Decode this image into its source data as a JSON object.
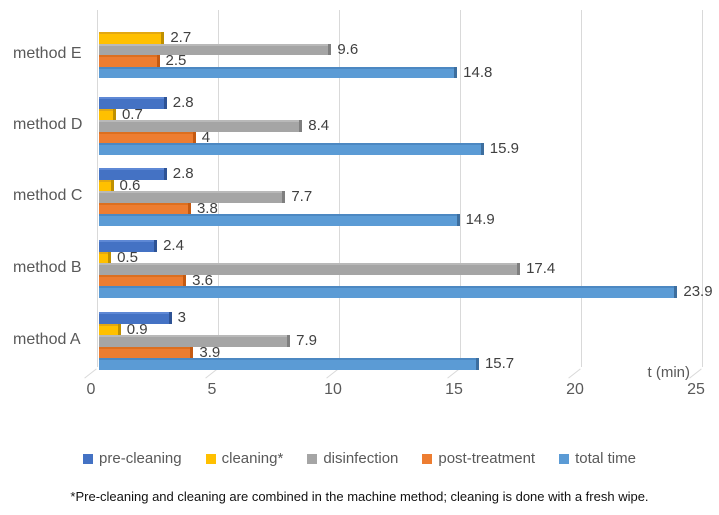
{
  "chart_data": {
    "type": "bar",
    "orientation": "horizontal-grouped-3d",
    "title": "",
    "xlabel": "t (min)",
    "xlim": [
      0,
      25
    ],
    "x_ticks": [
      0,
      5,
      10,
      15,
      20,
      25
    ],
    "grid": true,
    "legend_position": "bottom",
    "categories": [
      "method E",
      "method D",
      "method C",
      "method B",
      "method A"
    ],
    "series": [
      {
        "name": "pre-cleaning",
        "color": "#4472C4",
        "top": "#5E88D5",
        "dark": "#2E5395",
        "values": [
          null,
          2.8,
          2.8,
          2.4,
          3
        ]
      },
      {
        "name": "cleaning*",
        "color": "#FFC000",
        "top": "#E3A812",
        "dark": "#BF9000",
        "values": [
          2.7,
          0.7,
          0.6,
          0.5,
          0.9
        ]
      },
      {
        "name": "disinfection",
        "color": "#A5A5A5",
        "top": "#B9B9B9",
        "dark": "#7F7F7F",
        "values": [
          9.6,
          8.4,
          7.7,
          17.4,
          7.9
        ]
      },
      {
        "name": "post-treatment",
        "color": "#ED7D31",
        "top": "#DC6F20",
        "dark": "#C55A11",
        "values": [
          2.5,
          4,
          3.8,
          3.6,
          3.9
        ]
      },
      {
        "name": "total time",
        "color": "#5B9BD5",
        "top": "#4C88C2",
        "dark": "#3D6E9E",
        "values": [
          14.8,
          15.9,
          14.9,
          23.9,
          15.7
        ]
      }
    ],
    "footnote": "*Pre-cleaning and cleaning are combined in the machine method; cleaning is done with a fresh wipe.",
    "colors": {
      "gridline": "#D9D9D9",
      "axis_text": "#595959",
      "label_text": "#404040",
      "footnote_text": "#000000"
    }
  }
}
